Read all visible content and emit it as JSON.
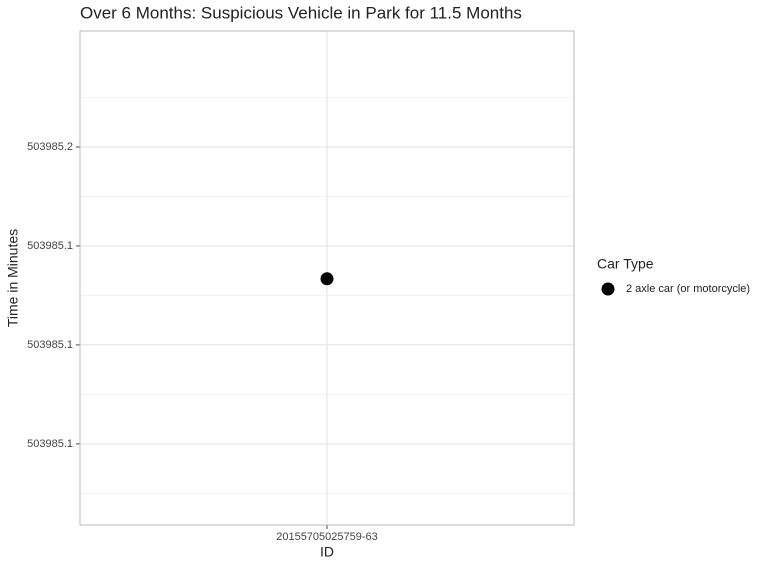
{
  "chart_data": {
    "type": "scatter",
    "title": "Over 6 Months: Suspicious Vehicle in Park for 11.5 Months",
    "x_label": "ID",
    "y_label": "Time in Minutes",
    "categories": [
      "20155705025759-63"
    ],
    "series": [
      {
        "name": "2 axle car (or motorcycle)",
        "color": "#000000",
        "values": [
          503985.1417
        ]
      }
    ],
    "legend_title": "Car Type",
    "ylim": [
      503985.0795,
      503985.2043
    ],
    "yticks": [
      {
        "value": 503985.1,
        "label": "503985.1"
      },
      {
        "value": 503985.125,
        "label": "503985.1"
      },
      {
        "value": 503985.15,
        "label": "503985.1"
      },
      {
        "value": 503985.175,
        "label": "503985.2"
      }
    ],
    "grid": true
  }
}
